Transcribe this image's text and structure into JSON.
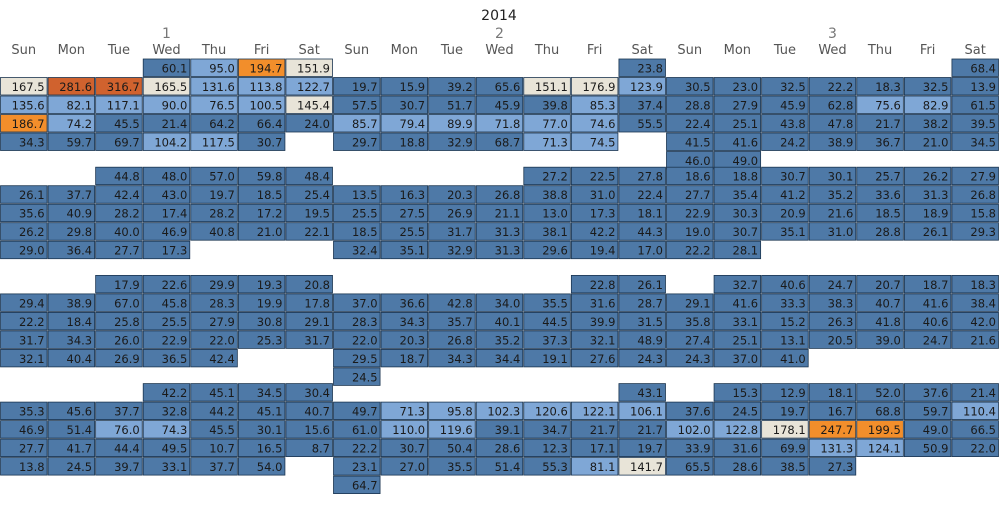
{
  "chart_data": {
    "type": "heatmap",
    "title": "2014",
    "day_headers": [
      "Sun",
      "Mon",
      "Tue",
      "Wed",
      "Thu",
      "Fri",
      "Sat"
    ],
    "colors": {
      "low": "#4e79a7",
      "mid_low": "#7fa7d6",
      "neutral": "#e8e4d8",
      "high": "#f28e2b",
      "very_high": "#d0622e",
      "grid": "#1b3550"
    },
    "groups": [
      {
        "months": [
          {
            "label": "1",
            "first_col": 3,
            "weeks": [
              [
                null,
                null,
                null,
                60.1,
                95.0,
                194.7,
                151.9
              ],
              [
                167.5,
                281.6,
                316.7,
                165.5,
                131.6,
                113.8,
                122.7
              ],
              [
                135.6,
                82.1,
                117.1,
                90.0,
                76.5,
                100.5,
                145.4
              ],
              [
                186.7,
                74.2,
                45.5,
                21.4,
                64.2,
                66.4,
                24.0
              ],
              [
                34.3,
                59.7,
                69.7,
                104.2,
                117.5,
                30.7,
                null
              ]
            ]
          },
          {
            "label": "2",
            "first_col": 6,
            "weeks": [
              [
                null,
                null,
                null,
                null,
                null,
                null,
                23.8
              ],
              [
                19.7,
                15.9,
                39.2,
                65.6,
                151.1,
                176.9,
                123.9
              ],
              [
                57.5,
                30.7,
                51.7,
                45.9,
                39.8,
                85.3,
                37.4
              ],
              [
                85.7,
                79.4,
                89.9,
                71.8,
                77.0,
                74.6,
                55.5
              ],
              [
                29.7,
                18.8,
                32.9,
                68.7,
                71.3,
                74.5,
                null
              ]
            ]
          },
          {
            "label": "3",
            "first_col": 6,
            "weeks": [
              [
                null,
                null,
                null,
                null,
                null,
                null,
                68.4
              ],
              [
                30.5,
                23.0,
                32.5,
                22.2,
                18.3,
                32.5,
                13.9
              ],
              [
                28.8,
                27.9,
                45.9,
                62.8,
                75.6,
                82.9,
                61.5
              ],
              [
                22.4,
                25.1,
                43.8,
                47.8,
                21.7,
                38.2,
                39.5
              ],
              [
                41.5,
                41.6,
                24.2,
                38.9,
                36.7,
                21.0,
                34.5
              ],
              [
                46.0,
                49.0,
                null,
                null,
                null,
                null,
                null
              ]
            ]
          }
        ]
      },
      {
        "months": [
          {
            "label": "",
            "first_col": 2,
            "weeks": [
              [
                null,
                null,
                44.8,
                48.0,
                57.0,
                59.8,
                48.4
              ],
              [
                26.1,
                37.7,
                42.4,
                43.0,
                19.7,
                18.5,
                25.4
              ],
              [
                35.6,
                40.9,
                28.2,
                17.4,
                28.2,
                17.2,
                19.5
              ],
              [
                26.2,
                29.8,
                40.0,
                46.9,
                40.8,
                21.0,
                22.1
              ],
              [
                29.0,
                36.4,
                27.7,
                17.3,
                null,
                null,
                null
              ]
            ]
          },
          {
            "label": "",
            "first_col": 4,
            "weeks": [
              [
                null,
                null,
                null,
                null,
                27.2,
                22.5,
                27.8
              ],
              [
                13.5,
                16.3,
                20.3,
                26.8,
                38.8,
                31.0,
                22.4
              ],
              [
                25.5,
                27.5,
                26.9,
                21.1,
                13.0,
                17.3,
                18.1
              ],
              [
                18.5,
                25.5,
                31.7,
                31.3,
                38.1,
                42.2,
                44.3
              ],
              [
                32.4,
                35.1,
                32.9,
                31.3,
                29.6,
                19.4,
                17.0
              ]
            ]
          },
          {
            "label": "",
            "first_col": 0,
            "weeks": [
              [
                18.6,
                18.8,
                30.7,
                30.1,
                25.7,
                26.2,
                27.9
              ],
              [
                27.7,
                35.4,
                41.2,
                35.2,
                33.6,
                31.3,
                26.8
              ],
              [
                22.9,
                30.3,
                20.9,
                21.6,
                18.5,
                18.9,
                15.8
              ],
              [
                19.0,
                30.7,
                35.1,
                31.0,
                28.8,
                26.1,
                29.3
              ],
              [
                22.2,
                28.1,
                null,
                null,
                null,
                null,
                null
              ]
            ]
          }
        ]
      },
      {
        "months": [
          {
            "label": "",
            "first_col": 2,
            "weeks": [
              [
                null,
                null,
                17.9,
                22.6,
                29.9,
                19.3,
                20.8
              ],
              [
                29.4,
                38.9,
                67.0,
                45.8,
                28.3,
                19.9,
                17.8
              ],
              [
                22.2,
                18.4,
                25.8,
                25.5,
                27.9,
                30.8,
                29.1
              ],
              [
                31.7,
                34.3,
                26.0,
                22.9,
                22.0,
                25.3,
                31.7
              ],
              [
                32.1,
                40.4,
                26.9,
                36.5,
                42.4,
                null,
                null
              ]
            ]
          },
          {
            "label": "",
            "first_col": 5,
            "weeks": [
              [
                null,
                null,
                null,
                null,
                null,
                22.8,
                26.1
              ],
              [
                37.0,
                36.6,
                42.8,
                34.0,
                35.5,
                31.6,
                28.7
              ],
              [
                28.3,
                34.3,
                35.7,
                40.1,
                44.5,
                39.9,
                31.5
              ],
              [
                22.0,
                20.3,
                26.8,
                35.2,
                37.3,
                32.1,
                48.9
              ],
              [
                29.5,
                18.7,
                34.3,
                34.4,
                19.1,
                27.6,
                24.3
              ],
              [
                24.5,
                null,
                null,
                null,
                null,
                null,
                null
              ]
            ]
          },
          {
            "label": "",
            "first_col": 1,
            "weeks": [
              [
                null,
                32.7,
                40.6,
                24.7,
                20.7,
                18.7,
                18.3
              ],
              [
                29.1,
                41.6,
                33.3,
                38.3,
                40.7,
                41.6,
                38.4
              ],
              [
                35.8,
                33.1,
                15.2,
                26.3,
                41.8,
                40.6,
                42.0
              ],
              [
                27.4,
                25.1,
                13.1,
                20.5,
                39.0,
                24.7,
                21.6
              ],
              [
                24.3,
                37.0,
                41.0,
                null,
                null,
                null,
                null
              ]
            ]
          }
        ]
      },
      {
        "months": [
          {
            "label": "",
            "first_col": 3,
            "weeks": [
              [
                null,
                null,
                null,
                42.2,
                45.1,
                34.5,
                30.4
              ],
              [
                35.3,
                45.6,
                37.7,
                32.8,
                44.2,
                45.1,
                40.7
              ],
              [
                46.9,
                51.4,
                76.0,
                74.3,
                45.5,
                30.1,
                15.6
              ],
              [
                27.7,
                41.7,
                44.4,
                49.5,
                10.7,
                16.5,
                8.7
              ],
              [
                13.8,
                24.5,
                39.7,
                33.1,
                37.7,
                54.0,
                null
              ]
            ]
          },
          {
            "label": "",
            "first_col": 6,
            "weeks": [
              [
                null,
                null,
                null,
                null,
                null,
                null,
                43.1
              ],
              [
                49.7,
                71.3,
                95.8,
                102.3,
                120.6,
                122.1,
                106.1
              ],
              [
                61.0,
                110.0,
                119.6,
                39.1,
                34.7,
                21.7,
                21.7
              ],
              [
                22.2,
                30.7,
                50.4,
                28.6,
                12.3,
                17.1,
                19.7
              ],
              [
                23.1,
                27.0,
                35.5,
                51.4,
                55.3,
                81.1,
                141.7
              ],
              [
                64.7,
                null,
                null,
                null,
                null,
                null,
                null
              ]
            ]
          },
          {
            "label": "",
            "first_col": 1,
            "weeks": [
              [
                null,
                15.3,
                12.9,
                18.1,
                52.0,
                37.6,
                21.4
              ],
              [
                37.6,
                24.5,
                19.7,
                16.7,
                68.8,
                59.7,
                110.4
              ],
              [
                102.0,
                122.8,
                178.1,
                247.7,
                199.5,
                49.0,
                66.5
              ],
              [
                33.9,
                31.6,
                69.9,
                131.3,
                124.1,
                50.9,
                22.0
              ],
              [
                65.5,
                28.6,
                38.5,
                27.3,
                null,
                null,
                null
              ]
            ]
          }
        ]
      }
    ]
  }
}
